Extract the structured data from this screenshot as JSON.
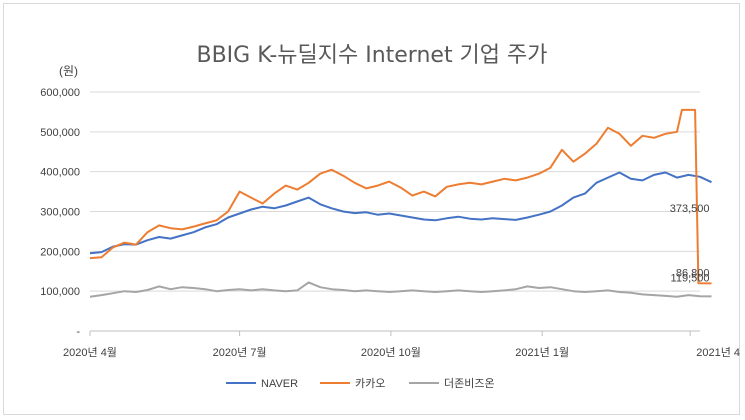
{
  "chart_data": {
    "type": "line",
    "title": "BBIG K-뉴딜지수 Internet 기업 주가",
    "ylabel": "(원)",
    "xlabel": "",
    "ylim": [
      0,
      600000
    ],
    "yticks": [
      "-",
      "100,000",
      "200,000",
      "300,000",
      "400,000",
      "500,000",
      "600,000"
    ],
    "ytick_values": [
      0,
      100000,
      200000,
      300000,
      400000,
      500000,
      600000
    ],
    "xticks": [
      {
        "label": "2020년 4월",
        "date": "2020-04-01"
      },
      {
        "label": "2020년 7월",
        "date": "2020-07-01"
      },
      {
        "label": "2020년 10월",
        "date": "2020-10-01"
      },
      {
        "label": "2021년 1월",
        "date": "2021-01-01"
      },
      {
        "label": "2021년 4",
        "date": "2021-04-01"
      }
    ],
    "grid": true,
    "legend_position": "bottom",
    "series": [
      {
        "name": "NAVER",
        "color": "#4472c4",
        "points": [
          [
            "2020-04-01",
            195000
          ],
          [
            "2020-04-08",
            198000
          ],
          [
            "2020-04-15",
            212000
          ],
          [
            "2020-04-22",
            218000
          ],
          [
            "2020-04-29",
            217000
          ],
          [
            "2020-05-06",
            228000
          ],
          [
            "2020-05-13",
            236000
          ],
          [
            "2020-05-20",
            232000
          ],
          [
            "2020-05-27",
            240000
          ],
          [
            "2020-06-03",
            248000
          ],
          [
            "2020-06-10",
            260000
          ],
          [
            "2020-06-17",
            268000
          ],
          [
            "2020-06-24",
            285000
          ],
          [
            "2020-07-01",
            295000
          ],
          [
            "2020-07-08",
            305000
          ],
          [
            "2020-07-15",
            312000
          ],
          [
            "2020-07-22",
            308000
          ],
          [
            "2020-07-29",
            315000
          ],
          [
            "2020-08-05",
            325000
          ],
          [
            "2020-08-12",
            335000
          ],
          [
            "2020-08-19",
            318000
          ],
          [
            "2020-08-26",
            308000
          ],
          [
            "2020-09-02",
            300000
          ],
          [
            "2020-09-09",
            296000
          ],
          [
            "2020-09-16",
            298000
          ],
          [
            "2020-09-23",
            292000
          ],
          [
            "2020-09-30",
            295000
          ],
          [
            "2020-10-07",
            290000
          ],
          [
            "2020-10-14",
            285000
          ],
          [
            "2020-10-21",
            280000
          ],
          [
            "2020-10-28",
            278000
          ],
          [
            "2020-11-04",
            283000
          ],
          [
            "2020-11-11",
            287000
          ],
          [
            "2020-11-18",
            282000
          ],
          [
            "2020-11-25",
            280000
          ],
          [
            "2020-12-02",
            283000
          ],
          [
            "2020-12-09",
            281000
          ],
          [
            "2020-12-16",
            279000
          ],
          [
            "2020-12-23",
            285000
          ],
          [
            "2020-12-30",
            292000
          ],
          [
            "2021-01-06",
            300000
          ],
          [
            "2021-01-13",
            315000
          ],
          [
            "2021-01-20",
            335000
          ],
          [
            "2021-01-27",
            345000
          ],
          [
            "2021-02-03",
            372000
          ],
          [
            "2021-02-10",
            385000
          ],
          [
            "2021-02-17",
            398000
          ],
          [
            "2021-02-24",
            382000
          ],
          [
            "2021-03-03",
            378000
          ],
          [
            "2021-03-10",
            392000
          ],
          [
            "2021-03-17",
            398000
          ],
          [
            "2021-03-24",
            385000
          ],
          [
            "2021-03-31",
            392000
          ],
          [
            "2021-04-07",
            387000
          ],
          [
            "2021-04-14",
            373500
          ]
        ]
      },
      {
        "name": "카카오",
        "color": "#ed7d31",
        "points": [
          [
            "2020-04-01",
            183000
          ],
          [
            "2020-04-08",
            185000
          ],
          [
            "2020-04-15",
            210000
          ],
          [
            "2020-04-22",
            222000
          ],
          [
            "2020-04-29",
            217000
          ],
          [
            "2020-05-06",
            248000
          ],
          [
            "2020-05-13",
            265000
          ],
          [
            "2020-05-20",
            258000
          ],
          [
            "2020-05-27",
            255000
          ],
          [
            "2020-06-03",
            262000
          ],
          [
            "2020-06-10",
            270000
          ],
          [
            "2020-06-17",
            278000
          ],
          [
            "2020-06-24",
            300000
          ],
          [
            "2020-07-01",
            350000
          ],
          [
            "2020-07-08",
            335000
          ],
          [
            "2020-07-15",
            320000
          ],
          [
            "2020-07-22",
            345000
          ],
          [
            "2020-07-29",
            365000
          ],
          [
            "2020-08-05",
            355000
          ],
          [
            "2020-08-12",
            372000
          ],
          [
            "2020-08-19",
            395000
          ],
          [
            "2020-08-26",
            405000
          ],
          [
            "2020-09-02",
            390000
          ],
          [
            "2020-09-09",
            372000
          ],
          [
            "2020-09-16",
            358000
          ],
          [
            "2020-09-23",
            365000
          ],
          [
            "2020-09-30",
            375000
          ],
          [
            "2020-10-07",
            360000
          ],
          [
            "2020-10-14",
            340000
          ],
          [
            "2020-10-21",
            350000
          ],
          [
            "2020-10-28",
            338000
          ],
          [
            "2020-11-04",
            362000
          ],
          [
            "2020-11-11",
            368000
          ],
          [
            "2020-11-18",
            372000
          ],
          [
            "2020-11-25",
            368000
          ],
          [
            "2020-12-02",
            375000
          ],
          [
            "2020-12-09",
            382000
          ],
          [
            "2020-12-16",
            378000
          ],
          [
            "2020-12-23",
            385000
          ],
          [
            "2020-12-30",
            395000
          ],
          [
            "2021-01-06",
            410000
          ],
          [
            "2021-01-13",
            455000
          ],
          [
            "2021-01-20",
            425000
          ],
          [
            "2021-01-27",
            445000
          ],
          [
            "2021-02-03",
            470000
          ],
          [
            "2021-02-10",
            510000
          ],
          [
            "2021-02-17",
            495000
          ],
          [
            "2021-02-24",
            465000
          ],
          [
            "2021-03-03",
            490000
          ],
          [
            "2021-03-10",
            485000
          ],
          [
            "2021-03-17",
            495000
          ],
          [
            "2021-03-24",
            500000
          ],
          [
            "2021-03-27",
            555000
          ],
          [
            "2021-04-04",
            555000
          ],
          [
            "2021-04-06",
            120000
          ],
          [
            "2021-04-14",
            119500
          ]
        ]
      },
      {
        "name": "더존비즈온",
        "color": "#a5a5a5",
        "points": [
          [
            "2020-04-01",
            86000
          ],
          [
            "2020-04-08",
            90000
          ],
          [
            "2020-04-15",
            95000
          ],
          [
            "2020-04-22",
            100000
          ],
          [
            "2020-04-29",
            98000
          ],
          [
            "2020-05-06",
            103000
          ],
          [
            "2020-05-13",
            112000
          ],
          [
            "2020-05-20",
            105000
          ],
          [
            "2020-05-27",
            110000
          ],
          [
            "2020-06-03",
            108000
          ],
          [
            "2020-06-10",
            105000
          ],
          [
            "2020-06-17",
            100000
          ],
          [
            "2020-06-24",
            103000
          ],
          [
            "2020-07-01",
            105000
          ],
          [
            "2020-07-08",
            102000
          ],
          [
            "2020-07-15",
            105000
          ],
          [
            "2020-07-22",
            102000
          ],
          [
            "2020-07-29",
            100000
          ],
          [
            "2020-08-05",
            102000
          ],
          [
            "2020-08-12",
            122000
          ],
          [
            "2020-08-19",
            110000
          ],
          [
            "2020-08-26",
            105000
          ],
          [
            "2020-09-02",
            103000
          ],
          [
            "2020-09-09",
            100000
          ],
          [
            "2020-09-16",
            102000
          ],
          [
            "2020-09-23",
            100000
          ],
          [
            "2020-09-30",
            98000
          ],
          [
            "2020-10-07",
            100000
          ],
          [
            "2020-10-14",
            102000
          ],
          [
            "2020-10-21",
            100000
          ],
          [
            "2020-10-28",
            98000
          ],
          [
            "2020-11-04",
            100000
          ],
          [
            "2020-11-11",
            102000
          ],
          [
            "2020-11-18",
            100000
          ],
          [
            "2020-11-25",
            98000
          ],
          [
            "2020-12-02",
            100000
          ],
          [
            "2020-12-09",
            102000
          ],
          [
            "2020-12-16",
            105000
          ],
          [
            "2020-12-23",
            112000
          ],
          [
            "2020-12-30",
            108000
          ],
          [
            "2021-01-06",
            110000
          ],
          [
            "2021-01-13",
            105000
          ],
          [
            "2021-01-20",
            100000
          ],
          [
            "2021-01-27",
            98000
          ],
          [
            "2021-02-03",
            100000
          ],
          [
            "2021-02-10",
            102000
          ],
          [
            "2021-02-17",
            98000
          ],
          [
            "2021-02-24",
            96000
          ],
          [
            "2021-03-03",
            92000
          ],
          [
            "2021-03-10",
            90000
          ],
          [
            "2021-03-17",
            88000
          ],
          [
            "2021-03-24",
            86000
          ],
          [
            "2021-03-31",
            90000
          ],
          [
            "2021-04-07",
            87000
          ],
          [
            "2021-04-14",
            86800
          ]
        ]
      }
    ],
    "data_labels": [
      {
        "series": "NAVER",
        "text": "373,500"
      },
      {
        "series": "카카오",
        "text": "119,500"
      },
      {
        "series": "더존비즈온",
        "text": "86,800"
      }
    ]
  }
}
